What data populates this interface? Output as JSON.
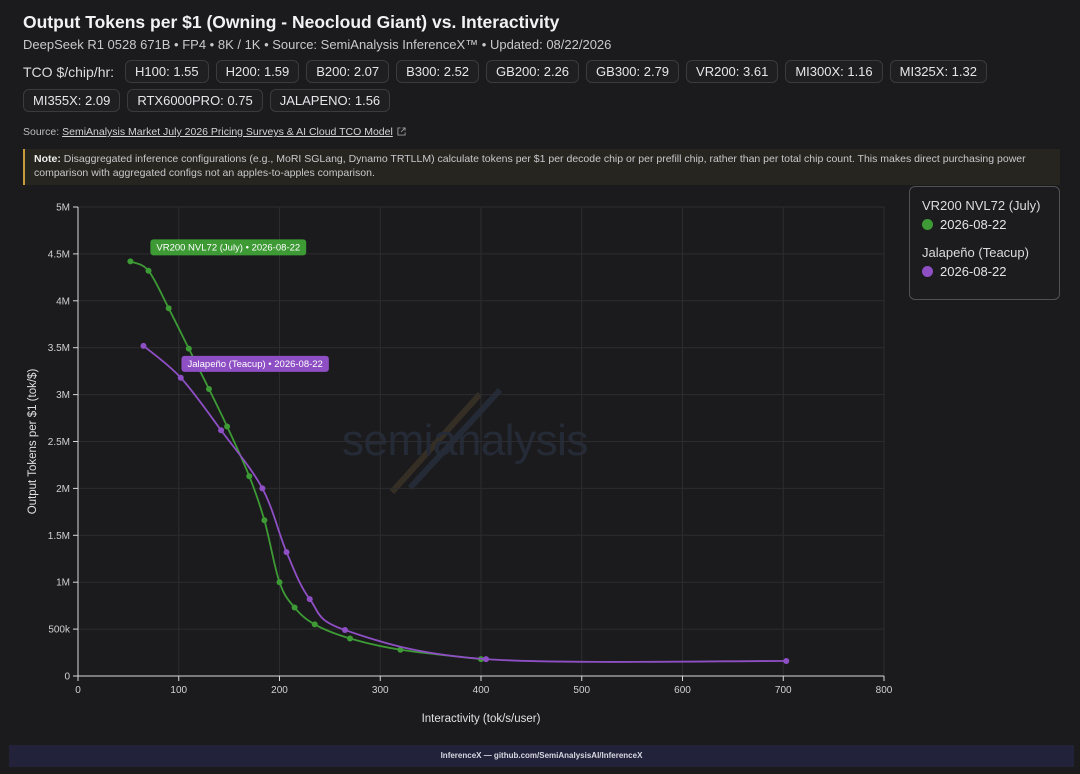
{
  "title": "Output Tokens per $1 (Owning - Neocloud Giant) vs. Interactivity",
  "subtitle": "DeepSeek R1 0528 671B • FP4 • 8K / 1K • Source: SemiAnalysis InferenceX™ • Updated: 08/22/2026",
  "tco": {
    "label": "TCO $/chip/hr:",
    "chips": [
      "H100: 1.55",
      "H200: 1.59",
      "B200: 2.07",
      "B300: 2.52",
      "GB200: 2.26",
      "GB300: 2.79",
      "VR200: 3.61",
      "MI300X: 1.16",
      "MI325X: 1.32",
      "MI355X: 2.09",
      "RTX6000PRO: 0.75",
      "JALAPENO: 1.56"
    ]
  },
  "source": {
    "prefix": "Source:",
    "link_text": "SemiAnalysis Market July 2026 Pricing Surveys & AI Cloud TCO Model"
  },
  "note": {
    "label": "Note:",
    "text": "Disaggregated inference configurations (e.g., MoRI SGLang, Dynamo TRTLLM) calculate tokens per $1 per decode chip or per prefill chip, rather than per total chip count. This makes direct purchasing power comparison with aggregated configs not an apples-to-apples comparison."
  },
  "legend": [
    {
      "name": "VR200 NVL72 (July)",
      "item": "2026-08-22",
      "color": "#3d9a35"
    },
    {
      "name": "Jalapeño (Teacup)",
      "item": "2026-08-22",
      "color": "#8e4fc4"
    }
  ],
  "watermark": "semianalysis",
  "footer": "InferenceX — github.com/SemiAnalysisAI/InferenceX",
  "chart_data": {
    "type": "line",
    "xlabel": "Interactivity (tok/s/user)",
    "ylabel": "Output Tokens per $1 (tok/$)",
    "xlim": [
      0,
      800
    ],
    "ylim": [
      0,
      5000000
    ],
    "xticks": [
      0,
      100,
      200,
      300,
      400,
      500,
      600,
      700,
      800
    ],
    "xtick_labels": [
      "0",
      "100",
      "200",
      "300",
      "400",
      "500",
      "600",
      "700",
      "800"
    ],
    "yticks": [
      0,
      500000,
      1000000,
      1500000,
      2000000,
      2500000,
      3000000,
      3500000,
      4000000,
      4500000,
      5000000
    ],
    "ytick_labels": [
      "0",
      "500k",
      "1M",
      "1.5M",
      "2M",
      "2.5M",
      "3M",
      "3.5M",
      "4M",
      "4.5M",
      "5M"
    ],
    "grid": true,
    "legend_position": "top-right",
    "series": [
      {
        "name": "VR200 NVL72 (July)",
        "color": "#3d9a35",
        "label": "VR200 NVL72 (July) • 2026-08-22",
        "x": [
          52,
          70,
          90,
          110,
          130,
          148,
          170,
          185,
          200,
          215,
          235,
          270,
          320,
          400
        ],
        "y": [
          4420000,
          4320000,
          3920000,
          3490000,
          3060000,
          2660000,
          2130000,
          1660000,
          1000000,
          730000,
          550000,
          400000,
          280000,
          180000
        ]
      },
      {
        "name": "Jalapeño (Teacup)",
        "color": "#8e4fc4",
        "label": "Jalapeño (Teacup) • 2026-08-22",
        "x": [
          65,
          102,
          142,
          183,
          207,
          230,
          265,
          405,
          703
        ],
        "y": [
          3520000,
          3180000,
          2620000,
          2000000,
          1320000,
          820000,
          490000,
          180000,
          160000
        ]
      }
    ]
  }
}
